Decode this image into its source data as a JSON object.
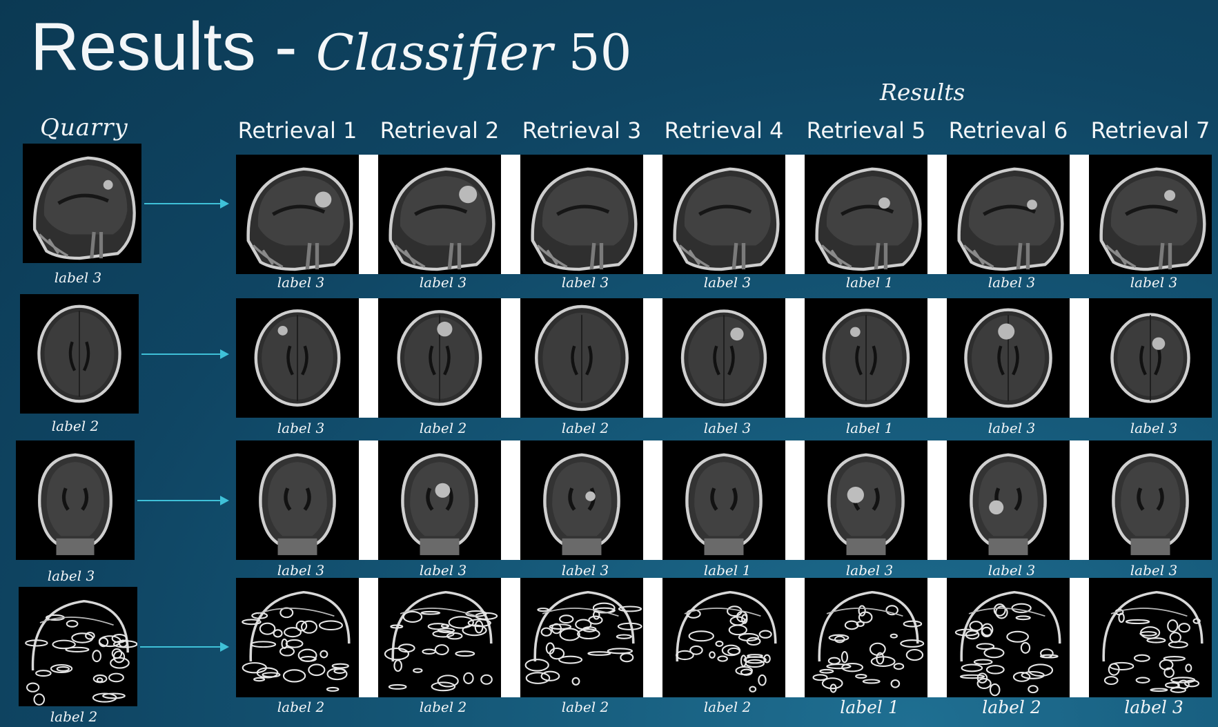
{
  "title": {
    "main": "Results - ",
    "italic": "Classifier",
    "number": " 50"
  },
  "results_heading": "Results",
  "quarry_heading": "Quarry",
  "columns": [
    "Retrieval 1",
    "Retrieval 2",
    "Retrieval 3",
    "Retrieval 4",
    "Retrieval 5",
    "Retrieval 6",
    "Retrieval 7"
  ],
  "rows": [
    {
      "view": "sagittal",
      "query_label": "label 3",
      "labels": [
        "label 3",
        "label 3",
        "label 3",
        "label 3",
        "label 1",
        "label 3",
        "label 3"
      ]
    },
    {
      "view": "axial",
      "query_label": "label 2",
      "labels": [
        "label 3",
        "label 2",
        "label 2",
        "label 3",
        "label 1",
        "label 3",
        "label 3"
      ]
    },
    {
      "view": "coronal",
      "query_label": "label 3",
      "labels": [
        "label 3",
        "label 3",
        "label 3",
        "label 1",
        "label 3",
        "label 3",
        "label 3"
      ]
    },
    {
      "view": "sagittal-edge",
      "query_label": "label 2",
      "labels": [
        "label 2",
        "label 2",
        "label 2",
        "label 2",
        "label 1",
        "label 2",
        "label 3"
      ]
    }
  ],
  "colors": {
    "arrow": "#3fc1d8",
    "background": "#0f4563",
    "separator": "#ffffff"
  }
}
